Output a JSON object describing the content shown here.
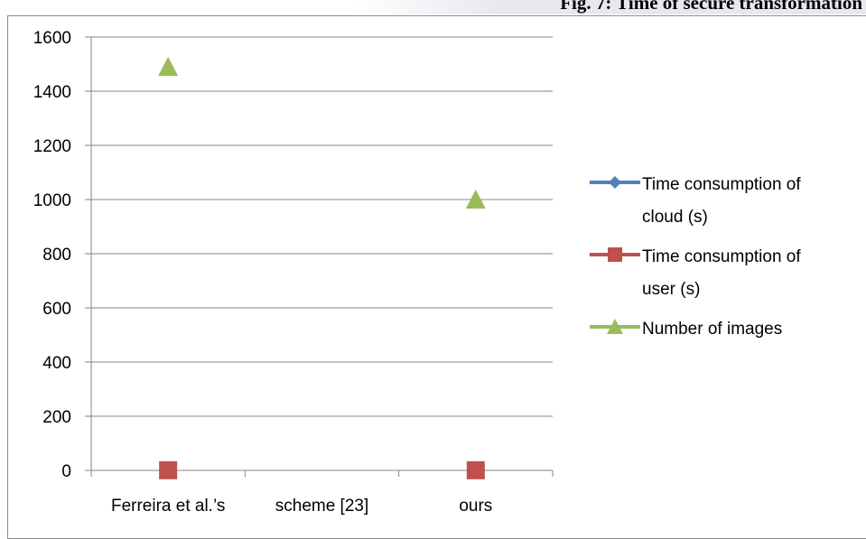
{
  "caption": "Fig. 7: Time of secure transformation",
  "chart_data": {
    "type": "line",
    "categories": [
      "Ferreira et al.’s",
      "scheme [23]",
      "ours"
    ],
    "ylim": [
      0,
      1600
    ],
    "yticks": [
      0,
      200,
      400,
      600,
      800,
      1000,
      1200,
      1400,
      1600
    ],
    "grid": true,
    "legend_position": "right",
    "series": [
      {
        "name_lines": [
          "Time consumption of",
          "cloud (s)"
        ],
        "values": [
          null,
          null,
          null
        ],
        "color": "#4f81bd",
        "marker": "diamond"
      },
      {
        "name_lines": [
          "Time consumption of",
          "user (s)"
        ],
        "values": [
          0.5,
          null,
          0.5
        ],
        "color": "#c0504d",
        "marker": "square"
      },
      {
        "name_lines": [
          "Number of images"
        ],
        "values": [
          1490,
          null,
          1000
        ],
        "color": "#9bbb59",
        "marker": "triangle"
      }
    ]
  }
}
